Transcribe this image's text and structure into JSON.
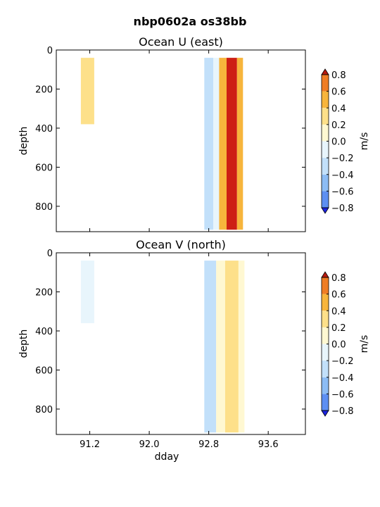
{
  "figure": {
    "suptitle": "nbp0602a os38bb"
  },
  "colors": {
    "levels": [
      -0.8,
      -0.6,
      -0.4,
      -0.2,
      0.0,
      0.2,
      0.4,
      0.6,
      0.8
    ],
    "band_colors": [
      "#3a5cf0",
      "#5d8ff2",
      "#8cbcf4",
      "#c2e0fa",
      "#e8f5fc",
      "#fff8d2",
      "#fde08a",
      "#f7b53c",
      "#ef7d25",
      "#e24d1b"
    ],
    "under": "#1c23e2",
    "over": "#b81a10",
    "peak": "#cd1f14"
  },
  "chart_data": [
    {
      "type": "heatmap",
      "title": "Ocean U (east)",
      "xlabel": "",
      "ylabel": "depth",
      "xlim": [
        90.75,
        94.1
      ],
      "ylim": [
        930,
        0
      ],
      "xticks": [
        91.2,
        92.0,
        92.8,
        93.6
      ],
      "yticks": [
        0,
        200,
        400,
        600,
        800
      ],
      "show_xticklabels": false,
      "colorbar": {
        "label": "m/s",
        "ticks": [
          -0.8,
          -0.6,
          -0.4,
          -0.2,
          0.0,
          0.2,
          0.4,
          0.6,
          0.8
        ]
      },
      "data_columns": [
        {
          "x0": 91.08,
          "x1": 91.26,
          "depth_top": 40,
          "depth_bottom": 380,
          "value": 0.3
        },
        {
          "x0": 92.74,
          "x1": 92.86,
          "depth_top": 40,
          "depth_bottom": 920,
          "value": -0.3
        },
        {
          "x0": 92.86,
          "x1": 92.94,
          "depth_top": 40,
          "depth_bottom": 920,
          "value": -0.15
        },
        {
          "x0": 92.94,
          "x1": 93.04,
          "depth_top": 40,
          "depth_bottom": 920,
          "value": 0.5
        },
        {
          "x0": 93.04,
          "x1": 93.18,
          "depth_top": 40,
          "depth_bottom": 920,
          "value": 0.8
        },
        {
          "x0": 93.18,
          "x1": 93.26,
          "depth_top": 40,
          "depth_bottom": 920,
          "value": 0.5
        }
      ]
    },
    {
      "type": "heatmap",
      "title": "Ocean V (north)",
      "xlabel": "dday",
      "ylabel": "depth",
      "xlim": [
        90.75,
        94.1
      ],
      "ylim": [
        930,
        0
      ],
      "xticks": [
        91.2,
        92.0,
        92.8,
        93.6
      ],
      "yticks": [
        0,
        200,
        400,
        600,
        800
      ],
      "show_xticklabels": true,
      "colorbar": {
        "label": "m/s",
        "ticks": [
          -0.8,
          -0.6,
          -0.4,
          -0.2,
          0.0,
          0.2,
          0.4,
          0.6,
          0.8
        ]
      },
      "data_columns": [
        {
          "x0": 91.08,
          "x1": 91.26,
          "depth_top": 40,
          "depth_bottom": 360,
          "value": -0.05
        },
        {
          "x0": 92.74,
          "x1": 92.9,
          "depth_top": 40,
          "depth_bottom": 920,
          "value": -0.25
        },
        {
          "x0": 92.9,
          "x1": 93.02,
          "depth_top": 40,
          "depth_bottom": 920,
          "value": 0.1
        },
        {
          "x0": 93.02,
          "x1": 93.2,
          "depth_top": 40,
          "depth_bottom": 920,
          "value": 0.25
        },
        {
          "x0": 93.2,
          "x1": 93.28,
          "depth_top": 40,
          "depth_bottom": 920,
          "value": 0.1
        }
      ]
    }
  ]
}
